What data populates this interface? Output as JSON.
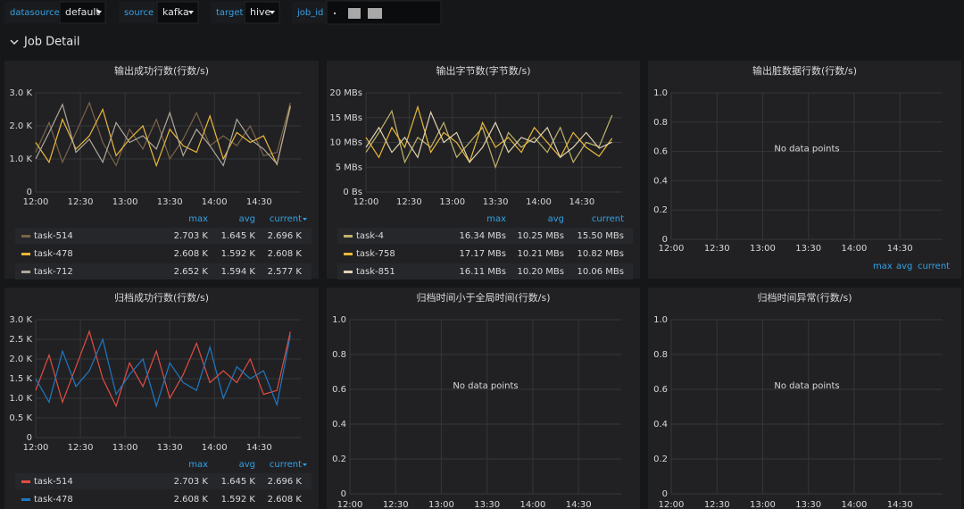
{
  "toolbar": {
    "variables": [
      {
        "label": "datasource",
        "value": "default"
      },
      {
        "label": "source",
        "value": "kafka"
      },
      {
        "label": "target",
        "value": "hive"
      },
      {
        "label": "job_id"
      }
    ]
  },
  "row_title": "Job Detail",
  "chart_data": [
    {
      "type": "line",
      "title": "输出成功行数(行数/s)",
      "x": [
        "12:00",
        "12:09",
        "12:18",
        "12:27",
        "12:36",
        "12:45",
        "12:54",
        "13:03",
        "13:12",
        "13:21",
        "13:30",
        "13:39",
        "13:48",
        "13:57",
        "14:06",
        "14:15",
        "14:24",
        "14:33",
        "14:42",
        "14:51"
      ],
      "xlim": [
        "12:00",
        "14:58"
      ],
      "xticks": [
        "12:00",
        "12:30",
        "13:00",
        "13:30",
        "14:00",
        "14:30"
      ],
      "ylim": [
        0,
        3000
      ],
      "yticks": [
        0,
        {
          "value": 1000,
          "label": "1.0 K"
        },
        {
          "value": 2000,
          "label": "2.0 K"
        },
        {
          "value": 3000,
          "label": "3.0 K"
        }
      ],
      "legend_columns": [
        "max",
        "avg",
        "current"
      ],
      "series": [
        {
          "name": "task-514",
          "color": "#7a6448",
          "values": [
            1200,
            2100,
            900,
            1800,
            2703,
            1500,
            800,
            1900,
            1300,
            2200,
            1000,
            1600,
            2400,
            1400,
            1700,
            1400,
            2000,
            1100,
            1200,
            2696
          ],
          "legend_values": [
            "2.703 K",
            "1.645 K",
            "2.696 K"
          ]
        },
        {
          "name": "task-478",
          "color": "#eab839",
          "values": [
            1500,
            900,
            2200,
            1300,
            1700,
            2500,
            1100,
            1600,
            2000,
            800,
            1900,
            1400,
            1200,
            2300,
            1000,
            1800,
            1500,
            1700,
            832,
            2608
          ],
          "legend_values": [
            "2.608 K",
            "1.592 K",
            "2.608 K"
          ]
        },
        {
          "name": "task-712",
          "color": "#b0a89a",
          "values": [
            1000,
            1800,
            2652,
            1200,
            1600,
            900,
            2100,
            1500,
            1700,
            1300,
            2400,
            1100,
            1900,
            1400,
            800,
            2200,
            1600,
            1300,
            851,
            2577
          ],
          "legend_values": [
            "2.652 K",
            "1.594 K",
            "2.577 K"
          ]
        }
      ]
    },
    {
      "type": "line",
      "title": "输出字节数(字节数/s)",
      "x": [
        "12:00",
        "12:09",
        "12:18",
        "12:27",
        "12:36",
        "12:45",
        "12:54",
        "13:03",
        "13:12",
        "13:21",
        "13:30",
        "13:39",
        "13:48",
        "13:57",
        "14:06",
        "14:15",
        "14:24",
        "14:33",
        "14:42",
        "14:51"
      ],
      "xlim": [
        "12:00",
        "14:58"
      ],
      "xticks": [
        "12:00",
        "12:30",
        "13:00",
        "13:30",
        "14:00",
        "14:30"
      ],
      "ylim": [
        0,
        20
      ],
      "yticks": [
        {
          "value": 0,
          "label": "0 Bs"
        },
        {
          "value": 5,
          "label": "5 MBs"
        },
        {
          "value": 10,
          "label": "10 MBs"
        },
        {
          "value": 15,
          "label": "15 MBs"
        },
        {
          "value": 20,
          "label": "20 MBs"
        }
      ],
      "legend_columns": [
        "max",
        "avg",
        "current"
      ],
      "series": [
        {
          "name": "task-4",
          "color": "#bfb36a",
          "values": [
            8,
            12,
            16.34,
            6,
            11,
            9,
            14,
            7,
            10,
            13,
            5,
            12,
            9,
            11,
            8,
            13,
            6,
            10,
            9.16,
            15.5
          ],
          "legend_values": [
            "16.34 MBs",
            "10.25 MBs",
            "15.50 MBs"
          ]
        },
        {
          "name": "task-758",
          "color": "#eab839",
          "values": [
            11,
            7,
            13,
            9,
            17.17,
            8,
            12,
            10,
            6,
            14,
            9,
            11,
            8,
            13,
            10,
            7,
            12,
            9,
            7.21,
            10.82
          ],
          "legend_values": [
            "17.17 MBs",
            "10.21 MBs",
            "10.82 MBs"
          ]
        },
        {
          "name": "task-851",
          "color": "#e0d2b0",
          "values": [
            9,
            13,
            8,
            11,
            7,
            16.11,
            10,
            12,
            6,
            9,
            14,
            8,
            11,
            10,
            13,
            7,
            9,
            12,
            8.83,
            10.06
          ],
          "legend_values": [
            "16.11 MBs",
            "10.20 MBs",
            "10.06 MBs"
          ]
        }
      ]
    },
    {
      "type": "line",
      "title": "输出脏数据行数(行数/s)",
      "message": "No data points",
      "xlim": [
        "12:00",
        "14:58"
      ],
      "xticks": [
        "12:00",
        "12:30",
        "13:00",
        "13:30",
        "14:00",
        "14:30"
      ],
      "ylim": [
        0,
        1
      ],
      "yticks": [
        0,
        0.2,
        0.4,
        0.6,
        0.8,
        {
          "value": 1,
          "label": "1.0"
        }
      ],
      "legend_columns": [
        "max",
        "avg",
        "current"
      ]
    },
    {
      "type": "line",
      "title": "归档成功行数(行数/s)",
      "x": [
        "12:00",
        "12:09",
        "12:18",
        "12:27",
        "12:36",
        "12:45",
        "12:54",
        "13:03",
        "13:12",
        "13:21",
        "13:30",
        "13:39",
        "13:48",
        "13:57",
        "14:06",
        "14:15",
        "14:24",
        "14:33",
        "14:42",
        "14:51"
      ],
      "xlim": [
        "12:00",
        "14:58"
      ],
      "xticks": [
        "12:00",
        "12:30",
        "13:00",
        "13:30",
        "14:00",
        "14:30"
      ],
      "ylim": [
        0,
        3000
      ],
      "yticks": [
        0,
        {
          "value": 500,
          "label": "0.5 K"
        },
        {
          "value": 1000,
          "label": "1.0 K"
        },
        {
          "value": 1500,
          "label": "1.5 K"
        },
        {
          "value": 2000,
          "label": "2.0 K"
        },
        {
          "value": 2500,
          "label": "2.5 K"
        },
        {
          "value": 3000,
          "label": "3.0 K"
        }
      ],
      "legend_columns": [
        "max",
        "avg",
        "current"
      ],
      "series": [
        {
          "name": "task-514",
          "color": "#e24d42",
          "values": [
            1200,
            2100,
            900,
            1800,
            2703,
            1500,
            800,
            1900,
            1300,
            2200,
            1000,
            1600,
            2400,
            1400,
            1700,
            1400,
            2000,
            1100,
            1200,
            2696
          ],
          "legend_values": [
            "2.703 K",
            "1.645 K",
            "2.696 K"
          ]
        },
        {
          "name": "task-478",
          "color": "#1f78c1",
          "values": [
            1500,
            900,
            2200,
            1300,
            1700,
            2500,
            1100,
            1600,
            2000,
            800,
            1900,
            1400,
            1200,
            2300,
            1000,
            1800,
            1500,
            1700,
            832,
            2608
          ],
          "legend_values": [
            "2.608 K",
            "1.592 K",
            "2.608 K"
          ]
        }
      ]
    },
    {
      "type": "line",
      "title": "归档时间小于全局时间(行数/s)",
      "message": "No data points",
      "xlim": [
        "12:00",
        "14:58"
      ],
      "xticks": [
        "12:00",
        "12:30",
        "13:00",
        "13:30",
        "14:00",
        "14:30"
      ],
      "ylim": [
        0,
        1
      ],
      "yticks": [
        0,
        0.2,
        0.4,
        0.6,
        0.8,
        {
          "value": 1,
          "label": "1.0"
        }
      ]
    },
    {
      "type": "line",
      "title": "归档时间异常(行数/s)",
      "message": "No data points",
      "xlim": [
        "12:00",
        "14:58"
      ],
      "xticks": [
        "12:00",
        "12:30",
        "13:00",
        "13:30",
        "14:00",
        "14:30"
      ],
      "ylim": [
        0,
        1
      ],
      "yticks": [
        0,
        0.2,
        0.4,
        0.6,
        0.8,
        {
          "value": 1,
          "label": "1.0"
        }
      ]
    }
  ]
}
